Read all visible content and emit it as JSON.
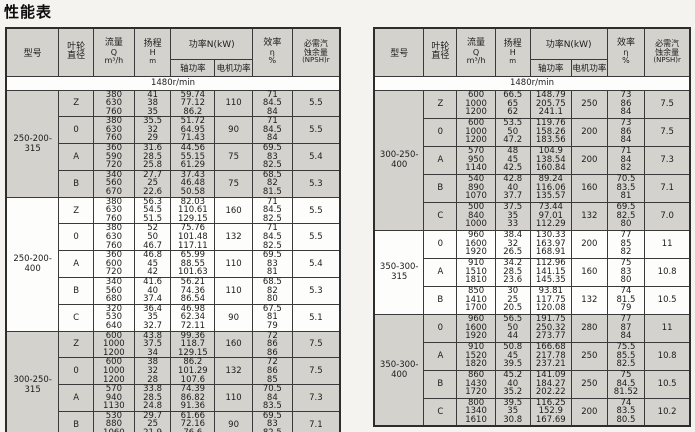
{
  "page": {
    "title": "性能表",
    "speed": "1480r/min"
  },
  "colors": {
    "page_bg": "#f4f3f0",
    "cell_bg": "#fdfdfc",
    "shaded_bg": "#d4d2cd",
    "border": "#3a3a3a",
    "text": "#1c1c1c"
  },
  "header": {
    "model": "型号",
    "impeller": [
      "叶轮",
      "直径"
    ],
    "flow": [
      "流量",
      "Q",
      "m³/h"
    ],
    "head": [
      "扬程",
      "H",
      "m"
    ],
    "power": "功率N(kW)",
    "shaft_power": "轴功率",
    "motor_power": "电机功率",
    "efficiency": [
      "效率",
      "η",
      "%"
    ],
    "npsh": [
      "必需汽",
      "蚀余量",
      "(NPSH)r"
    ]
  },
  "tables": [
    {
      "side": "left",
      "groups": [
        {
          "model": "250-200-315",
          "shaded": true,
          "rows": [
            {
              "impeller": "Z",
              "flow": [
                "380",
                "630",
                "760"
              ],
              "head": [
                "41",
                "38",
                "35"
              ],
              "shaft": [
                "59.74",
                "77.12",
                "86.2"
              ],
              "motor": "110",
              "eff": [
                "71",
                "84.5",
                "84"
              ],
              "npsh": "5.5"
            },
            {
              "impeller": "0",
              "flow": [
                "380",
                "630",
                "760"
              ],
              "head": [
                "35.5",
                "32",
                "29"
              ],
              "shaft": [
                "51.72",
                "64.95",
                "71.43"
              ],
              "motor": "90",
              "eff": [
                "71",
                "84.5",
                "84"
              ],
              "npsh": "5.5"
            },
            {
              "impeller": "A",
              "flow": [
                "360",
                "590",
                "720"
              ],
              "head": [
                "31.6",
                "28.5",
                "25.8"
              ],
              "shaft": [
                "44.56",
                "55.15",
                "61.29"
              ],
              "motor": "75",
              "eff": [
                "69.5",
                "83",
                "82.5"
              ],
              "npsh": "5.4"
            },
            {
              "impeller": "B",
              "flow": [
                "340",
                "560",
                "670"
              ],
              "head": [
                "27.7",
                "25",
                "22.6"
              ],
              "shaft": [
                "37.43",
                "46.48",
                "50.58"
              ],
              "motor": "75",
              "eff": [
                "68.5",
                "82",
                "81.5"
              ],
              "npsh": "5.3"
            }
          ]
        },
        {
          "model": "250-200-400",
          "shaded": false,
          "rows": [
            {
              "impeller": "Z",
              "flow": [
                "380",
                "630",
                "760"
              ],
              "head": [
                "56.3",
                "54.5",
                "51.5"
              ],
              "shaft": [
                "82.03",
                "110.61",
                "129.15"
              ],
              "motor": "160",
              "eff": [
                "71",
                "84.5",
                "82.5"
              ],
              "npsh": "5.5"
            },
            {
              "impeller": "0",
              "flow": [
                "380",
                "630",
                "760"
              ],
              "head": [
                "52",
                "50",
                "46.7"
              ],
              "shaft": [
                "75.76",
                "101.48",
                "117.11"
              ],
              "motor": "132",
              "eff": [
                "71",
                "84.5",
                "82.5"
              ],
              "npsh": "5.5"
            },
            {
              "impeller": "A",
              "flow": [
                "360",
                "600",
                "720"
              ],
              "head": [
                "46.8",
                "45",
                "42"
              ],
              "shaft": [
                "65.99",
                "88.55",
                "101.63"
              ],
              "motor": "110",
              "eff": [
                "69.5",
                "83",
                "81"
              ],
              "npsh": "5.4"
            },
            {
              "impeller": "B",
              "flow": [
                "340",
                "560",
                "680"
              ],
              "head": [
                "41.6",
                "40",
                "37.4"
              ],
              "shaft": [
                "56.21",
                "74.36",
                "86.54"
              ],
              "motor": "110",
              "eff": [
                "68.5",
                "82",
                "80"
              ],
              "npsh": "5.3"
            },
            {
              "impeller": "C",
              "flow": [
                "320",
                "530",
                "640"
              ],
              "head": [
                "36.4",
                "35",
                "32.7"
              ],
              "shaft": [
                "46.98",
                "62.34",
                "72.11"
              ],
              "motor": "90",
              "eff": [
                "67.5",
                "81",
                "79"
              ],
              "npsh": "5.1"
            }
          ]
        },
        {
          "model": "300-250-315",
          "shaded": true,
          "rows": [
            {
              "impeller": "Z",
              "flow": [
                "600",
                "1000",
                "1200"
              ],
              "head": [
                "43.8",
                "37.5",
                "34"
              ],
              "shaft": [
                "99.36",
                "118.7",
                "129.15"
              ],
              "motor": "160",
              "eff": [
                "72",
                "86",
                "86"
              ],
              "npsh": "7.5"
            },
            {
              "impeller": "0",
              "flow": [
                "600",
                "1000",
                "1200"
              ],
              "head": [
                "38",
                "32",
                "28"
              ],
              "shaft": [
                "86.2",
                "101.29",
                "107.6"
              ],
              "motor": "132",
              "eff": [
                "72",
                "86",
                "85"
              ],
              "npsh": "7.5"
            },
            {
              "impeller": "A",
              "flow": [
                "570",
                "940",
                "1130"
              ],
              "head": [
                "33.8",
                "28.5",
                "24.8"
              ],
              "shaft": [
                "74.39",
                "86.82",
                "91.36"
              ],
              "motor": "110",
              "eff": [
                "70.5",
                "84",
                "83.5"
              ],
              "npsh": "7.3"
            },
            {
              "impeller": "B",
              "flow": [
                "530",
                "880",
                "1060"
              ],
              "head": [
                "29.7",
                "25",
                "21.9"
              ],
              "shaft": [
                "61.66",
                "72.16",
                "76.6"
              ],
              "motor": "90",
              "eff": [
                "69.5",
                "83",
                "82.5"
              ],
              "npsh": "7.1"
            }
          ]
        }
      ]
    },
    {
      "side": "right",
      "groups": [
        {
          "model": "300-250-400",
          "shaded": true,
          "rows": [
            {
              "impeller": "Z",
              "flow": [
                "600",
                "1000",
                "1200"
              ],
              "head": [
                "66.5",
                "65",
                "62"
              ],
              "shaft": [
                "148.79",
                "205.75",
                "241.1"
              ],
              "motor": "250",
              "eff": [
                "73",
                "86",
                "84"
              ],
              "npsh": "7.5"
            },
            {
              "impeller": "0",
              "flow": [
                "600",
                "1000",
                "1200"
              ],
              "head": [
                "53.5",
                "50",
                "47.2"
              ],
              "shaft": [
                "119.76",
                "158.26",
                "183.56"
              ],
              "motor": "200",
              "eff": [
                "73",
                "86",
                "84"
              ],
              "npsh": "7.5"
            },
            {
              "impeller": "A",
              "flow": [
                "570",
                "950",
                "1140"
              ],
              "head": [
                "48",
                "45",
                "42.5"
              ],
              "shaft": [
                "104.9",
                "138.54",
                "160.84"
              ],
              "motor": "200",
              "eff": [
                "71",
                "84",
                "82"
              ],
              "npsh": "7.3"
            },
            {
              "impeller": "B",
              "flow": [
                "540",
                "890",
                "1070"
              ],
              "head": [
                "42.8",
                "40",
                "37.7"
              ],
              "shaft": [
                "89.24",
                "116.06",
                "135.57"
              ],
              "motor": "160",
              "eff": [
                "70.5",
                "83.5",
                "81"
              ],
              "npsh": "7.1"
            },
            {
              "impeller": "C",
              "flow": [
                "500",
                "840",
                "1000"
              ],
              "head": [
                "37.5",
                "35",
                "33"
              ],
              "shaft": [
                "73.44",
                "97.01",
                "112.29"
              ],
              "motor": "132",
              "eff": [
                "69.5",
                "82.5",
                "80"
              ],
              "npsh": "7.0"
            }
          ]
        },
        {
          "model": "350-300-315",
          "shaded": false,
          "rows": [
            {
              "impeller": "0",
              "flow": [
                "960",
                "1600",
                "1920"
              ],
              "head": [
                "38.4",
                "32",
                "26.5"
              ],
              "shaft": [
                "130.33",
                "163.97",
                "168.91"
              ],
              "motor": "200",
              "eff": [
                "77",
                "85",
                "82"
              ],
              "npsh": "11"
            },
            {
              "impeller": "A",
              "flow": [
                "910",
                "1510",
                "1810"
              ],
              "head": [
                "34.2",
                "28.5",
                "23.6"
              ],
              "shaft": [
                "112.96",
                "141.15",
                "145.35"
              ],
              "motor": "160",
              "eff": [
                "75",
                "83",
                "80"
              ],
              "npsh": "10.8"
            },
            {
              "impeller": "B",
              "flow": [
                "850",
                "1410",
                "1700"
              ],
              "head": [
                "30",
                "25",
                "20.5"
              ],
              "shaft": [
                "93.81",
                "117.75",
                "120.08"
              ],
              "motor": "132",
              "eff": [
                "74",
                "81.5",
                "79"
              ],
              "npsh": "10.5"
            }
          ]
        },
        {
          "model": "350-300-400",
          "shaded": true,
          "rows": [
            {
              "impeller": "0",
              "flow": [
                "960",
                "1600",
                "1920"
              ],
              "head": [
                "56.5",
                "50",
                "44"
              ],
              "shaft": [
                "191.75",
                "250.32",
                "273.77"
              ],
              "motor": "280",
              "eff": [
                "77",
                "87",
                "84"
              ],
              "npsh": "11"
            },
            {
              "impeller": "A",
              "flow": [
                "910",
                "1520",
                "1820"
              ],
              "head": [
                "50.8",
                "45",
                "39.5"
              ],
              "shaft": [
                "166.68",
                "217.78",
                "237.21"
              ],
              "motor": "250",
              "eff": [
                "75.5",
                "85.5",
                "82.5"
              ],
              "npsh": "10.8"
            },
            {
              "impeller": "B",
              "flow": [
                "860",
                "1430",
                "1720"
              ],
              "head": [
                "45.2",
                "40",
                "35.2"
              ],
              "shaft": [
                "141.09",
                "184.27",
                "202.22"
              ],
              "motor": "250",
              "eff": [
                "75",
                "84.5",
                "81.52"
              ],
              "npsh": "10.5"
            },
            {
              "impeller": "C",
              "flow": [
                "800",
                "1340",
                "1610"
              ],
              "head": [
                "39.5",
                "35",
                "30.8"
              ],
              "shaft": [
                "116.25",
                "152.9",
                "167.69"
              ],
              "motor": "200",
              "eff": [
                "74",
                "83.5",
                "80.5"
              ],
              "npsh": "10.2"
            }
          ]
        }
      ]
    }
  ]
}
